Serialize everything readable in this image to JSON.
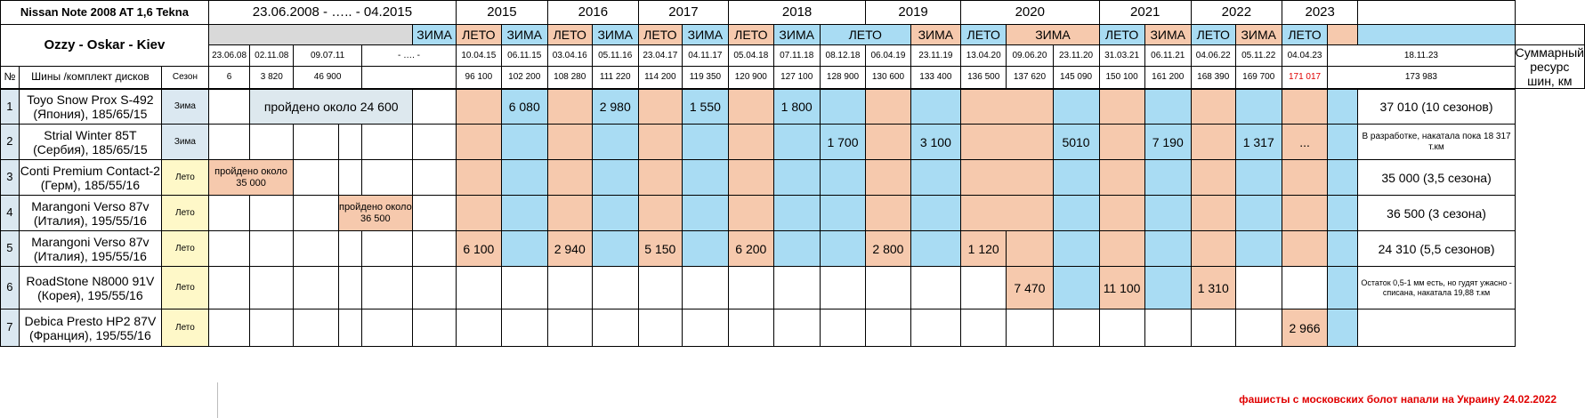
{
  "car": "Nissan Note 2008 AT 1,6 Tekna",
  "owners": "Ozzy - Oskar - Kiev",
  "period": "23.06.2008 - ….. - 04.2015",
  "years": [
    "2015",
    "2016",
    "2017",
    "2018",
    "2019",
    "2020",
    "2021",
    "2022",
    "2023"
  ],
  "season_labels": [
    "ЗИМА",
    "ЛЕТО",
    "ЗИМА",
    "ЛЕТО",
    "ЗИМА",
    "ЛЕТО",
    "ЗИМА",
    "ЛЕТО",
    "ЗИМА",
    "ЛЕТО",
    "ЗИМА",
    "ЛЕТО",
    "ЗИМА",
    "ЛЕТО",
    "ЗИМА",
    "ЛЕТО",
    "ЗИМА",
    "ЛЕТО"
  ],
  "dates": [
    "23.06.08",
    "02.11.08",
    "09.07.11",
    "- …. -",
    "10.04.15",
    "06.11.15",
    "03.04.16",
    "05.11.16",
    "23.04.17",
    "04.11.17",
    "05.04.18",
    "07.11.18",
    "08.12.18",
    "06.04.19",
    "23.11.19",
    "13.04.20",
    "09.06.20",
    "23.11.20",
    "31.03.21",
    "06.11.21",
    "04.06.22",
    "05.11.22",
    "04.04.23",
    "18.11.23"
  ],
  "odometer": [
    "6",
    "3 820",
    "46 900",
    "",
    "96 100",
    "102 200",
    "108 280",
    "111 220",
    "114 200",
    "119 350",
    "120 900",
    "127 100",
    "128 900",
    "130 600",
    "133 400",
    "136 500",
    "137 620",
    "145 090",
    "150 100",
    "161 200",
    "168 390",
    "169 700",
    "171 017",
    "173 983"
  ],
  "headers": {
    "num": "№",
    "tire": "Шины /комплект дисков",
    "season": "Сезон",
    "total": "Суммарный ресурс шин, км"
  },
  "rows": [
    {
      "n": "1",
      "name": "Toyo Snow Prox S-492 (Япония), 185/65/15",
      "season": "Зима",
      "note": "пройдено около 24 600",
      "values": [
        "6 080",
        "2 980",
        "1 550",
        "1 800"
      ],
      "total": "37 010 (10 сезонов)"
    },
    {
      "n": "2",
      "name": "Strial Winter 85T (Сербия), 185/65/15",
      "season": "Зима",
      "values": [
        "1 700",
        "3 100",
        "5010",
        "7 190",
        "1 317",
        "..."
      ],
      "total": "В разработке, накатала пока 18 317  т.км"
    },
    {
      "n": "3",
      "name": "Conti Premium Contact-2  (Герм), 185/55/16",
      "season": "Лето",
      "note": "пройдено около 35 000",
      "total": "35 000 (3,5 сезона)"
    },
    {
      "n": "4",
      "name": "Marangoni Verso 87v (Италия), 195/55/16",
      "season": "Лето",
      "note": "пройдено около 36 500",
      "total": "36 500 (3 сезона)"
    },
    {
      "n": "5",
      "name": "Marangoni Verso 87v (Италия), 195/55/16",
      "season": "Лето",
      "values": [
        "6 100",
        "2 940",
        "5 150",
        "6 200",
        "2 800",
        "1 120"
      ],
      "total": "24 310 (5,5 сезонов)"
    },
    {
      "n": "6",
      "name": "RoadStone N8000 91V (Корея), 195/55/16",
      "season": "Лето",
      "values": [
        "7 470",
        "11 100",
        "1 310"
      ],
      "total": "Остаток 0,5-1 мм есть, но гудят ужасно - списана, накатала 19,88 т.км"
    },
    {
      "n": "7",
      "name": "Debica Presto HP2 87V (Франция), 195/55/16",
      "season": "Лето",
      "values": [
        "2 966"
      ],
      "total": ""
    }
  ],
  "footer": "фашисты с московских болот напали на Украину 24.02.2022",
  "colors": {
    "winter": "#a9dcf3",
    "summer": "#f6c9ad",
    "season_col": "#fef8c8",
    "accent_red": "#e00000"
  }
}
